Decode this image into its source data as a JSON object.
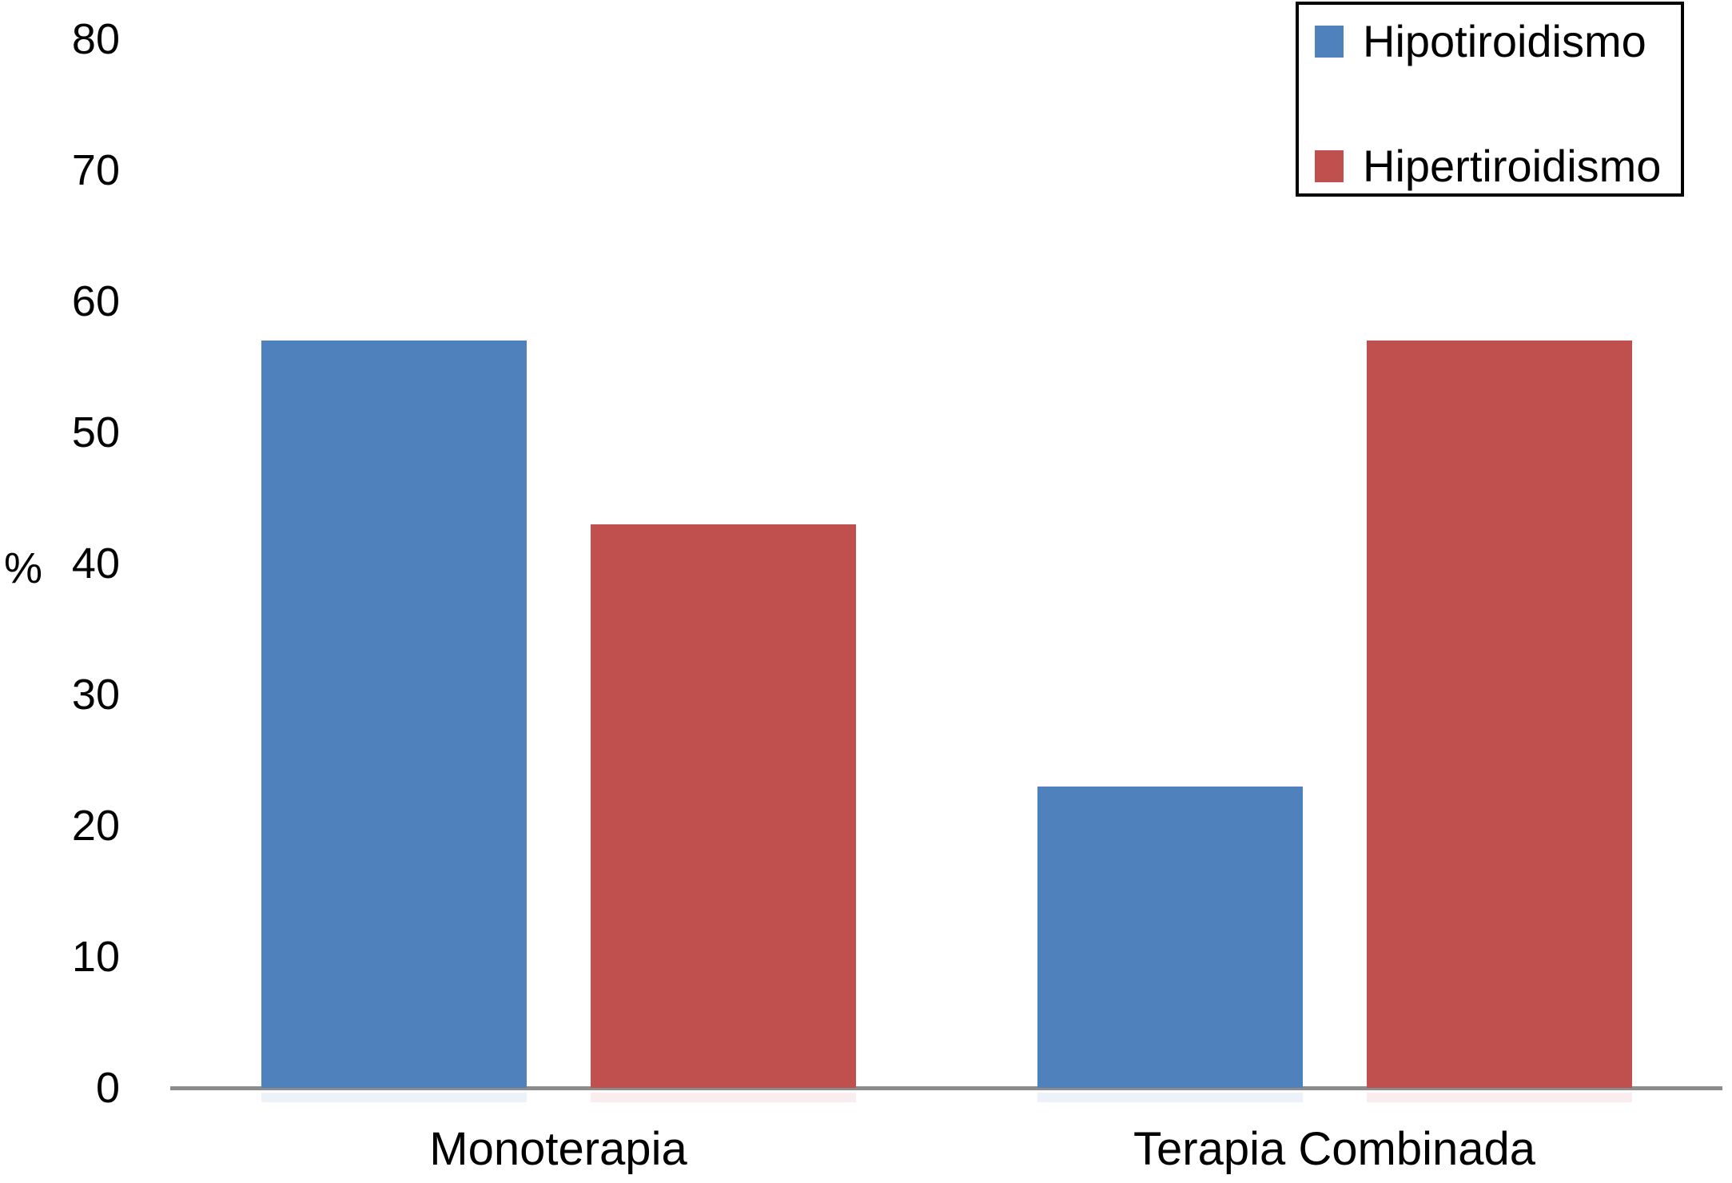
{
  "chart_data": {
    "type": "bar",
    "categories": [
      "Monoterapia",
      "Terapia Combinada"
    ],
    "series": [
      {
        "name": "Hipotiroidismo",
        "color": "#4F81BD",
        "values": [
          57,
          23
        ]
      },
      {
        "name": "Hipertiroidismo",
        "color": "#C0504D",
        "values": [
          43,
          57
        ]
      }
    ],
    "ylabel": "%",
    "xlabel": "",
    "title": "",
    "ylim": [
      0,
      80
    ],
    "yticks": [
      0,
      10,
      20,
      30,
      40,
      50,
      60,
      70,
      80
    ],
    "grid": false,
    "legend_position": "top-right",
    "axis_line_color": "#8C8C8C",
    "text_color": "#000000",
    "background_color": "#FFFFFF"
  }
}
